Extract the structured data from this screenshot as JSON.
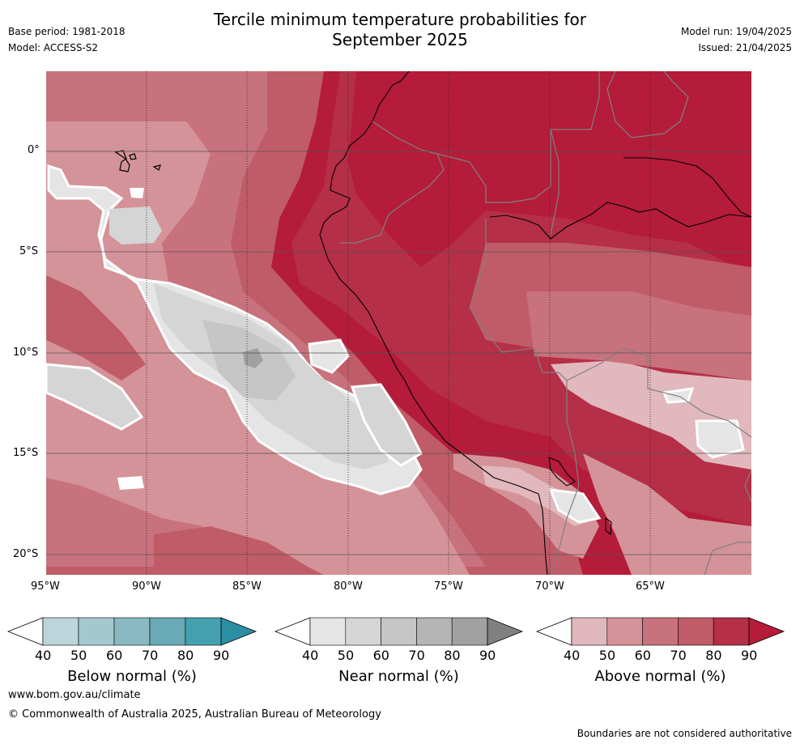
{
  "title": {
    "line1": "Tercile minimum temperature probabilities for",
    "line2": "September 2025"
  },
  "meta": {
    "base_period": "Base period: 1981-2018",
    "model": "Model: ACCESS-S2",
    "model_run": "Model run: 19/04/2025",
    "issued": "Issued: 21/04/2025"
  },
  "map": {
    "lon_range": [
      -95,
      -60
    ],
    "lat_range": [
      -21,
      4
    ],
    "x_ticks": [
      "95°W",
      "90°W",
      "85°W",
      "80°W",
      "75°W",
      "70°W",
      "65°W"
    ],
    "y_ticks": [
      "0°",
      "5°S",
      "10°S",
      "15°S",
      "20°S"
    ],
    "colors": {
      "land_default": "#b41c3a",
      "coastline": "#000000",
      "border": "#808080",
      "gridline": "#222222"
    }
  },
  "colorbars": [
    {
      "label": "Below normal (%)",
      "ticks": [
        "40",
        "50",
        "60",
        "70",
        "80",
        "90"
      ],
      "colors": [
        "#ffffff",
        "#bcd5db",
        "#a5c8cf",
        "#8ab9c3",
        "#6aa9b6",
        "#45a1b0",
        "#2b8ea2"
      ]
    },
    {
      "label": "Near normal (%)",
      "ticks": [
        "40",
        "50",
        "60",
        "70",
        "80",
        "90"
      ],
      "colors": [
        "#ffffff",
        "#e5e5e5",
        "#d5d5d5",
        "#c6c6c6",
        "#b5b5b5",
        "#a1a1a1",
        "#808080"
      ]
    },
    {
      "label": "Above normal (%)",
      "ticks": [
        "40",
        "50",
        "60",
        "70",
        "80",
        "90"
      ],
      "colors": [
        "#ffffff",
        "#e1b8bd",
        "#d49398",
        "#c8727d",
        "#c05c67",
        "#b52f47",
        "#b41c3a"
      ]
    }
  ],
  "footer": {
    "website": "www.bom.gov.au/climate",
    "copyright": "© Commonwealth of Australia 2025, Australian Bureau of Meteorology",
    "disclaimer": "Boundaries are not considered authoritative"
  }
}
